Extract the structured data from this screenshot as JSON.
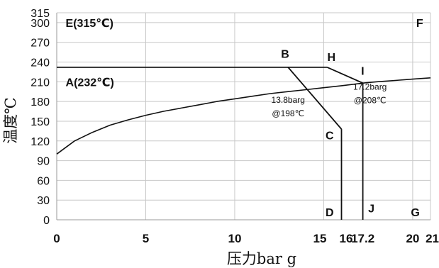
{
  "chart_data": {
    "type": "line",
    "xlabel": "压力bar g",
    "ylabel": "温度℃",
    "xlim": [
      0,
      21
    ],
    "ylim": [
      0,
      315
    ],
    "x_ticks": [
      {
        "value": 0,
        "label": "0"
      },
      {
        "value": 5,
        "label": "5"
      },
      {
        "value": 10,
        "label": "10"
      },
      {
        "value": 15,
        "label": "15"
      },
      {
        "value": 16,
        "label": "16"
      },
      {
        "value": 17.2,
        "label": "17.2"
      },
      {
        "value": 20,
        "label": "20"
      },
      {
        "value": 21,
        "label": "21"
      }
    ],
    "y_ticks": [
      {
        "value": 0,
        "label": "0"
      },
      {
        "value": 30,
        "label": "30"
      },
      {
        "value": 60,
        "label": "60"
      },
      {
        "value": 90,
        "label": "90"
      },
      {
        "value": 120,
        "label": "120"
      },
      {
        "value": 150,
        "label": "150"
      },
      {
        "value": 180,
        "label": "180"
      },
      {
        "value": 210,
        "label": "210"
      },
      {
        "value": 240,
        "label": "240"
      },
      {
        "value": 270,
        "label": "270"
      },
      {
        "value": 300,
        "label": "300"
      },
      {
        "value": 315,
        "label": "315"
      }
    ],
    "grid_x": [
      0,
      5,
      10,
      15,
      20,
      21
    ],
    "grid_y": [
      0,
      30,
      60,
      90,
      120,
      150,
      180,
      210,
      240,
      270,
      300,
      315
    ],
    "saturation_curve": [
      {
        "x": 0,
        "y": 100
      },
      {
        "x": 1,
        "y": 120
      },
      {
        "x": 2,
        "y": 133
      },
      {
        "x": 3,
        "y": 144
      },
      {
        "x": 4,
        "y": 152
      },
      {
        "x": 5,
        "y": 159
      },
      {
        "x": 6,
        "y": 165
      },
      {
        "x": 7,
        "y": 170
      },
      {
        "x": 8,
        "y": 175
      },
      {
        "x": 9,
        "y": 180
      },
      {
        "x": 10,
        "y": 184
      },
      {
        "x": 11,
        "y": 188
      },
      {
        "x": 12,
        "y": 192
      },
      {
        "x": 13,
        "y": 195
      },
      {
        "x": 14,
        "y": 198
      },
      {
        "x": 15,
        "y": 201
      },
      {
        "x": 16,
        "y": 204
      },
      {
        "x": 17.2,
        "y": 208
      },
      {
        "x": 18,
        "y": 210
      },
      {
        "x": 19,
        "y": 212
      },
      {
        "x": 20,
        "y": 214
      },
      {
        "x": 21,
        "y": 216
      }
    ],
    "segments": [
      {
        "name": "A-H",
        "points": [
          {
            "x": 0,
            "y": 232
          },
          {
            "x": 15.2,
            "y": 232
          }
        ]
      },
      {
        "name": "H-I",
        "points": [
          {
            "x": 15.2,
            "y": 232
          },
          {
            "x": 17.2,
            "y": 208
          }
        ]
      },
      {
        "name": "B-C",
        "points": [
          {
            "x": 13,
            "y": 232
          },
          {
            "x": 16,
            "y": 138
          }
        ]
      },
      {
        "name": "C-D",
        "points": [
          {
            "x": 16,
            "y": 138
          },
          {
            "x": 16,
            "y": 0
          }
        ]
      },
      {
        "name": "I-J",
        "points": [
          {
            "x": 17.2,
            "y": 208
          },
          {
            "x": 17.2,
            "y": 0
          }
        ]
      }
    ],
    "point_labels": [
      {
        "id": "E",
        "text": "E(315℃)",
        "x": 0.5,
        "y": 300
      },
      {
        "id": "F",
        "text": "F",
        "x": 20.2,
        "y": 300
      },
      {
        "id": "B",
        "text": "B",
        "x": 12.6,
        "y": 253
      },
      {
        "id": "H",
        "text": "H",
        "x": 15.2,
        "y": 248
      },
      {
        "id": "I",
        "text": "I",
        "x": 17.1,
        "y": 227
      },
      {
        "id": "A",
        "text": "A(232℃)",
        "x": 0.5,
        "y": 210
      },
      {
        "id": "C",
        "text": "C",
        "x": 15.1,
        "y": 129
      },
      {
        "id": "D",
        "text": "D",
        "x": 15.1,
        "y": 12
      },
      {
        "id": "J",
        "text": "J",
        "x": 17.5,
        "y": 18
      },
      {
        "id": "G",
        "text": "G",
        "x": 19.9,
        "y": 12
      }
    ],
    "annotations": [
      {
        "lines": [
          "13.8barg",
          "@198℃"
        ],
        "x": 13.0,
        "y": 178
      },
      {
        "lines": [
          "17.2barg",
          "@208℃"
        ],
        "x": 17.6,
        "y": 198
      }
    ]
  }
}
